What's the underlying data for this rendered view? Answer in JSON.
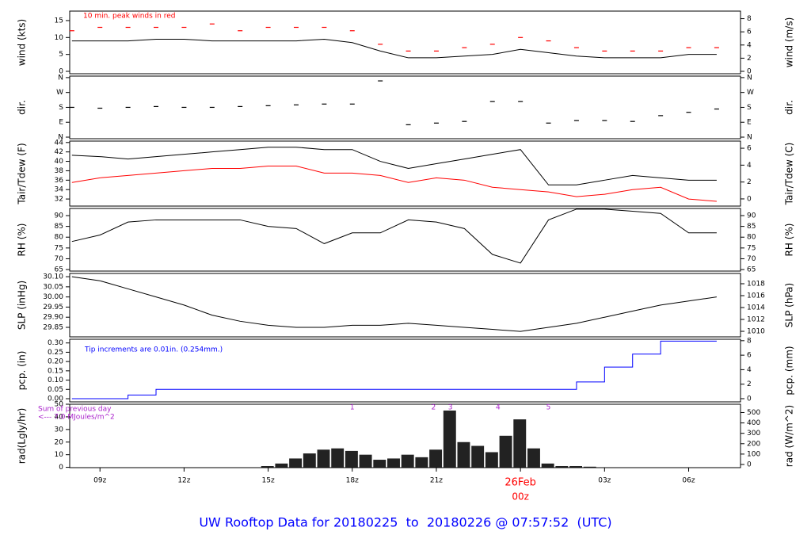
{
  "title": "UW Rooftop Data for 20180225  to  20180226 @ 07:57:52  (UTC)",
  "title_color": "#0000ff",
  "chart_data": [
    {
      "type": "line",
      "ylabel": "wind (kts)",
      "y2label": "wind (m/s)",
      "annotations": [
        {
          "text": "10 min. peak winds in red",
          "color": "#ff0000"
        }
      ],
      "xlim": [
        7.92,
        31.85
      ],
      "ylim": [
        -0.7,
        17.8
      ],
      "yticks": [
        0,
        5,
        10,
        15
      ],
      "y2lim": [
        -0.36,
        9.15
      ],
      "y2ticks": [
        0,
        2,
        4,
        6,
        8
      ],
      "x": [
        8,
        9,
        10,
        11,
        12,
        13,
        14,
        15,
        16,
        17,
        18,
        19,
        20,
        21,
        22,
        23,
        24,
        25,
        26,
        27,
        28,
        29,
        30,
        31
      ],
      "series": [
        {
          "name": "wind",
          "color": "#000000",
          "values": [
            9,
            9,
            9,
            9.5,
            9.5,
            9,
            9,
            9,
            9,
            9.5,
            8.5,
            6,
            4,
            4,
            4.5,
            5,
            6.5,
            5.5,
            4.5,
            4,
            4,
            4,
            5,
            5
          ]
        },
        {
          "name": "peak",
          "color": "#ff0000",
          "marker": "dash",
          "values": [
            12,
            13,
            13,
            13,
            13,
            14,
            12,
            13,
            13,
            13,
            12,
            8,
            6,
            6,
            7,
            8,
            10,
            9,
            7,
            6,
            6,
            6,
            7,
            7
          ]
        }
      ]
    },
    {
      "type": "scatter",
      "ylabel": "dir.",
      "y2label": "dir.",
      "xlim": [
        7.92,
        31.85
      ],
      "ylim": [
        -9.5,
        369
      ],
      "yticks": [
        {
          "value": 0,
          "label": "N"
        },
        {
          "value": 90,
          "label": "E"
        },
        {
          "value": 180,
          "label": "S"
        },
        {
          "value": 270,
          "label": "W"
        },
        {
          "value": 360,
          "label": "N"
        }
      ],
      "y2lim": [
        -9.5,
        369
      ],
      "y2ticks": [
        {
          "value": 0,
          "label": "N"
        },
        {
          "value": 90,
          "label": "E"
        },
        {
          "value": 180,
          "label": "S"
        },
        {
          "value": 270,
          "label": "W"
        },
        {
          "value": 360,
          "label": "N"
        }
      ],
      "x": [
        8,
        9,
        10,
        11,
        12,
        13,
        14,
        15,
        16,
        17,
        18,
        19,
        20,
        21,
        22,
        23,
        24,
        25,
        26,
        27,
        28,
        29,
        30,
        31
      ],
      "series": [
        {
          "name": "dir",
          "color": "#000000",
          "marker": "dash",
          "values": [
            180,
            175,
            180,
            185,
            180,
            180,
            185,
            190,
            195,
            200,
            200,
            340,
            75,
            85,
            95,
            215,
            215,
            85,
            100,
            100,
            95,
            130,
            150,
            170
          ]
        }
      ]
    },
    {
      "type": "line",
      "ylabel": "Tair/Tdew (F)",
      "y2label": "Tair/Tdew (C)",
      "xlim": [
        7.92,
        31.85
      ],
      "ylim": [
        30.5,
        44.3
      ],
      "yticks": [
        32,
        34,
        36,
        38,
        40,
        42,
        44
      ],
      "y2lim": [
        -0.85,
        6.85
      ],
      "y2ticks": [
        0,
        2,
        4,
        6
      ],
      "x": [
        8,
        9,
        10,
        11,
        12,
        13,
        14,
        15,
        16,
        17,
        18,
        19,
        20,
        21,
        22,
        23,
        24,
        25,
        26,
        27,
        28,
        29,
        30,
        31
      ],
      "series": [
        {
          "name": "Tair",
          "color": "#000000",
          "values": [
            41.3,
            41,
            40.5,
            41,
            41.5,
            42,
            42.5,
            43,
            43,
            42.5,
            42.5,
            40,
            38.5,
            39.5,
            40.5,
            41.5,
            42.5,
            35,
            35,
            36,
            37,
            36.5,
            36,
            36
          ]
        },
        {
          "name": "Tdew",
          "color": "#ff0000",
          "values": [
            35.5,
            36.5,
            37,
            37.5,
            38,
            38.5,
            38.5,
            39,
            39,
            37.5,
            37.5,
            37,
            35.5,
            36.5,
            36,
            34.5,
            34,
            33.5,
            32.5,
            33,
            34,
            34.5,
            32,
            31.5
          ]
        }
      ]
    },
    {
      "type": "line",
      "ylabel": "RH (%)",
      "y2label": "RH (%)",
      "xlim": [
        7.92,
        31.85
      ],
      "ylim": [
        64.3,
        93.3
      ],
      "yticks": [
        65,
        70,
        75,
        80,
        85,
        90
      ],
      "y2lim": [
        64.3,
        93.3
      ],
      "y2ticks": [
        65,
        70,
        75,
        80,
        85,
        90
      ],
      "x": [
        8,
        9,
        10,
        11,
        12,
        13,
        14,
        15,
        16,
        17,
        18,
        19,
        20,
        21,
        22,
        23,
        24,
        25,
        26,
        27,
        28,
        29,
        30,
        31
      ],
      "series": [
        {
          "name": "RH",
          "color": "#000000",
          "values": [
            78,
            81,
            87,
            88,
            88,
            88,
            88,
            85,
            84,
            77,
            82,
            82,
            88,
            87,
            84,
            72,
            68,
            88,
            93,
            93,
            92,
            91,
            82,
            82
          ]
        }
      ]
    },
    {
      "type": "line",
      "ylabel": "SLP (inHg)",
      "y2label": "SLP (hPa)",
      "xlim": [
        7.92,
        31.85
      ],
      "ylim": [
        29.803,
        30.116
      ],
      "yticks": [
        29.85,
        {
          "value": 29.9,
          "label": "29.90"
        },
        29.95,
        {
          "value": 30,
          "label": "30.00"
        },
        30.05,
        {
          "value": 30.1,
          "label": "30.10"
        }
      ],
      "y2lim": [
        1009.07,
        1019.73
      ],
      "y2ticks": [
        1010,
        1012,
        1014,
        1016,
        1018
      ],
      "x": [
        8,
        9,
        10,
        11,
        12,
        13,
        14,
        15,
        16,
        17,
        18,
        19,
        20,
        21,
        22,
        23,
        24,
        25,
        26,
        27,
        28,
        29,
        30,
        31
      ],
      "series": [
        {
          "name": "SLP",
          "color": "#000000",
          "values": [
            30.1,
            30.08,
            30.04,
            30,
            29.96,
            29.91,
            29.88,
            29.86,
            29.85,
            29.85,
            29.86,
            29.86,
            29.87,
            29.86,
            29.85,
            29.84,
            29.83,
            29.85,
            29.87,
            29.9,
            29.93,
            29.96,
            29.98,
            30
          ]
        }
      ]
    },
    {
      "type": "step",
      "ylabel": "pcp. (in)",
      "y2label": "pcp. (mm)",
      "annotations": [
        {
          "text": "Tip increments are 0.01in. (0.254mm.)",
          "color": "#0000ff"
        }
      ],
      "xlim": [
        7.92,
        31.85
      ],
      "ylim": [
        -0.017,
        0.32
      ],
      "yticks": [
        {
          "value": 0,
          "label": "0.00"
        },
        0.05,
        {
          "value": 0.1,
          "label": "0.10"
        },
        0.15,
        {
          "value": 0.2,
          "label": "0.20"
        },
        0.25,
        {
          "value": 0.3,
          "label": "0.30"
        }
      ],
      "y2lim": [
        -0.44,
        8.2
      ],
      "y2ticks": [
        0,
        2,
        4,
        6,
        8
      ],
      "x": [
        8,
        9,
        10,
        11,
        12,
        13,
        14,
        15,
        16,
        17,
        18,
        19,
        20,
        21,
        22,
        23,
        24,
        25,
        26,
        27,
        28,
        29,
        30,
        31
      ],
      "series": [
        {
          "name": "pcp",
          "color": "#0000ff",
          "values": [
            0,
            0,
            0.02,
            0.05,
            0.05,
            0.05,
            0.05,
            0.05,
            0.05,
            0.05,
            0.05,
            0.05,
            0.05,
            0.05,
            0.05,
            0.05,
            0.05,
            0.05,
            0.09,
            0.17,
            0.24,
            0.31,
            0.31,
            0.31
          ]
        }
      ]
    },
    {
      "type": "bar",
      "ylabel": "rad(Lgly/hr)",
      "y2label": "rad (W/m^2)",
      "annotations": [
        {
          "text": "Sum of previous day",
          "color": "#aa22cc"
        },
        {
          "text": "<--- 7.0 MJoules/m^2",
          "color": "#aa22cc"
        }
      ],
      "markers": [
        {
          "x": 18,
          "label": "1"
        },
        {
          "x": 20.9,
          "label": "2"
        },
        {
          "x": 21.5,
          "label": "3"
        },
        {
          "x": 23.2,
          "label": "4"
        },
        {
          "x": 25,
          "label": "5"
        }
      ],
      "marker_color": "#aa22cc",
      "xlim": [
        7.92,
        31.85
      ],
      "xticks": [
        {
          "value": 9,
          "label": "09z"
        },
        {
          "value": 12,
          "label": "12z"
        },
        {
          "value": 15,
          "label": "15z"
        },
        {
          "value": 18,
          "label": "18z"
        },
        {
          "value": 21,
          "label": "21z"
        },
        {
          "value": 24,
          "label": "00z"
        },
        {
          "value": 27,
          "label": "03z"
        },
        {
          "value": 30,
          "label": "06z"
        }
      ],
      "date_label": {
        "value": 24,
        "label": "26Feb",
        "color": "#ff0000"
      },
      "ylim": [
        -0.26,
        50
      ],
      "yticks": [
        0,
        10,
        20,
        30,
        40,
        50
      ],
      "y2lim": [
        -30.5,
        580
      ],
      "y2ticks": [
        0,
        100,
        200,
        300,
        400,
        500
      ],
      "x": [
        14.5,
        15,
        15.5,
        16,
        16.5,
        17,
        17.5,
        18,
        18.5,
        19,
        19.5,
        20,
        20.5,
        21,
        21.5,
        22,
        22.5,
        23,
        23.5,
        24,
        24.5,
        25,
        25.5,
        26,
        26.5,
        27
      ],
      "series": [
        {
          "name": "rad",
          "color": "#222222",
          "values": [
            0,
            1,
            3,
            7,
            11,
            14,
            15,
            13,
            10,
            6,
            7,
            10,
            8,
            14,
            45,
            20,
            17,
            12,
            25,
            38,
            15,
            3,
            1,
            1,
            0.5,
            0
          ]
        }
      ]
    }
  ]
}
